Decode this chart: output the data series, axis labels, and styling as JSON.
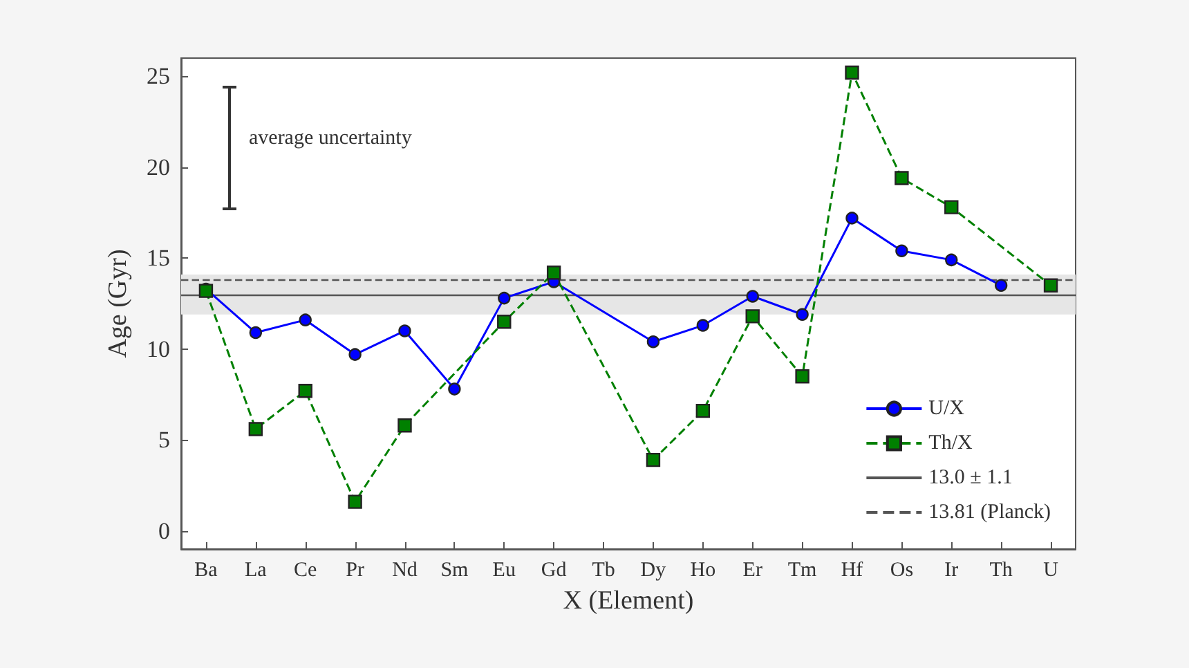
{
  "chart_data": {
    "type": "line",
    "xlabel": "X (Element)",
    "ylabel": "Age (Gyr)",
    "categories": [
      "Ba",
      "La",
      "Ce",
      "Pr",
      "Nd",
      "Sm",
      "Eu",
      "Gd",
      "Tb",
      "Dy",
      "Ho",
      "Er",
      "Tm",
      "Hf",
      "Os",
      "Ir",
      "Th",
      "U"
    ],
    "series": [
      {
        "name": "U/X",
        "color": "#0000ff",
        "marker": "circle",
        "line_style": "solid",
        "values": [
          13.3,
          10.9,
          11.6,
          9.7,
          11.0,
          7.8,
          12.8,
          13.7,
          null,
          10.4,
          11.3,
          12.9,
          11.9,
          17.2,
          15.4,
          14.9,
          13.5,
          null
        ]
      },
      {
        "name": "Th/X",
        "color": "#008000",
        "marker": "square",
        "line_style": "dashed",
        "values": [
          13.2,
          5.6,
          7.7,
          1.6,
          5.8,
          null,
          11.5,
          14.2,
          null,
          3.9,
          6.6,
          11.8,
          8.5,
          25.2,
          19.4,
          17.8,
          null,
          13.5
        ]
      }
    ],
    "ylim": [
      -1,
      26
    ],
    "yticks": [
      0,
      5,
      10,
      15,
      20,
      25
    ],
    "ref_lines": [
      {
        "axis": "y",
        "value": 13.0,
        "label": "13.0 ± 1.1",
        "color": "#555555",
        "line_style": "solid"
      },
      {
        "axis": "y",
        "value": 13.81,
        "label": "13.81 (Planck)",
        "color": "#555555",
        "line_style": "dashed"
      }
    ],
    "bands": [
      {
        "axis": "y",
        "from": 11.9,
        "to": 14.1,
        "color": "#e6e6e6"
      }
    ],
    "annotations": [
      "average uncertainty"
    ],
    "legend": "bottom right",
    "grid": false
  }
}
